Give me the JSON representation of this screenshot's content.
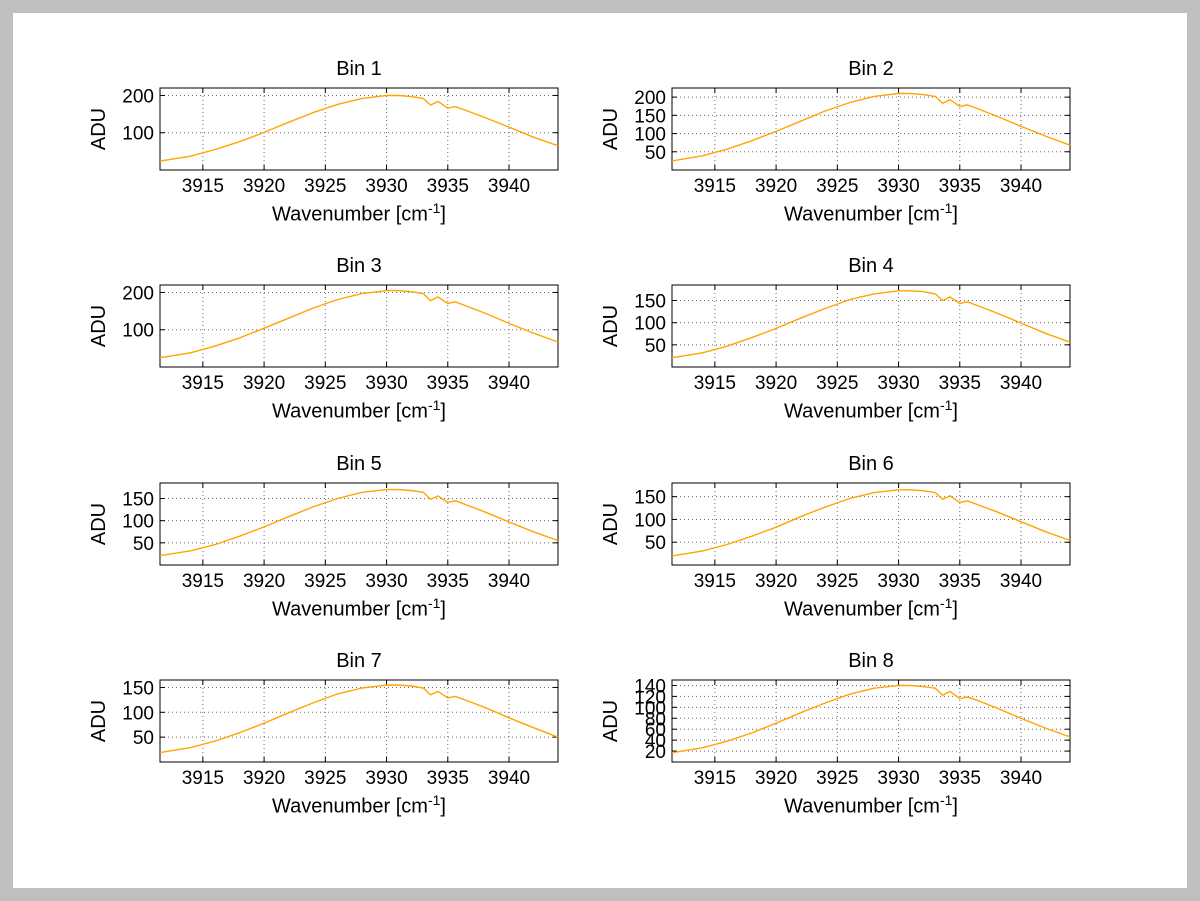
{
  "colors": {
    "window_border": "#bfbfbf",
    "figure_background": "#ffffff",
    "curve": "#ffa500",
    "grid": "#6b6b6b",
    "axis": "#000000"
  },
  "chart_data": [
    {
      "type": "line",
      "title": "Bin 1",
      "xlabel_base": "Wavenumber [cm",
      "xlabel_exp": "-1",
      "xlabel_close": "]",
      "ylabel": "ADU",
      "xlim": [
        3911.5,
        3944
      ],
      "ylim": [
        0,
        220
      ],
      "xticks": [
        3915,
        3920,
        3925,
        3930,
        3935,
        3940
      ],
      "yticks": [
        100,
        200
      ],
      "grid": true,
      "legend": "none",
      "line_color": "#ffa500",
      "x": [
        3911.5,
        3914,
        3916,
        3918,
        3920,
        3922,
        3924,
        3926,
        3928,
        3930,
        3931,
        3932,
        3933,
        3933.6,
        3934.2,
        3935,
        3935.6,
        3936.4,
        3938,
        3940,
        3942,
        3944
      ],
      "y": [
        24,
        37,
        55,
        76,
        101,
        128,
        154,
        176,
        192,
        200,
        200,
        197,
        192,
        174,
        184,
        166,
        170,
        161,
        141,
        115,
        88,
        65
      ]
    },
    {
      "type": "line",
      "title": "Bin 2",
      "xlabel_base": "Wavenumber [cm",
      "xlabel_exp": "-1",
      "xlabel_close": "]",
      "ylabel": "ADU",
      "xlim": [
        3911.5,
        3944
      ],
      "ylim": [
        0,
        225
      ],
      "xticks": [
        3915,
        3920,
        3925,
        3930,
        3935,
        3940
      ],
      "yticks": [
        50,
        100,
        150,
        200
      ],
      "grid": true,
      "legend": "none",
      "line_color": "#ffa500",
      "x": [
        3911.5,
        3914,
        3916,
        3918,
        3920,
        3922,
        3924,
        3926,
        3928,
        3930,
        3931,
        3932,
        3933,
        3933.6,
        3934.2,
        3935,
        3935.6,
        3936.4,
        3938,
        3940,
        3942,
        3944
      ],
      "y": [
        25,
        39,
        57,
        80,
        106,
        134,
        162,
        185,
        202,
        210,
        210,
        207,
        202,
        183,
        193,
        174,
        179,
        169,
        148,
        120,
        93,
        68
      ]
    },
    {
      "type": "line",
      "title": "Bin 3",
      "xlabel_base": "Wavenumber [cm",
      "xlabel_exp": "-1",
      "xlabel_close": "]",
      "ylabel": "ADU",
      "xlim": [
        3911.5,
        3944
      ],
      "ylim": [
        0,
        220
      ],
      "xticks": [
        3915,
        3920,
        3925,
        3930,
        3935,
        3940
      ],
      "yticks": [
        100,
        200
      ],
      "grid": true,
      "legend": "none",
      "line_color": "#ffa500",
      "x": [
        3911.5,
        3914,
        3916,
        3918,
        3920,
        3922,
        3924,
        3926,
        3928,
        3930,
        3931,
        3932,
        3933,
        3933.6,
        3934.2,
        3935,
        3935.6,
        3936.4,
        3938,
        3940,
        3942,
        3944
      ],
      "y": [
        25,
        38,
        56,
        78,
        104,
        131,
        158,
        181,
        197,
        205,
        205,
        202,
        197,
        178,
        188,
        170,
        175,
        165,
        145,
        117,
        91,
        67
      ]
    },
    {
      "type": "line",
      "title": "Bin 4",
      "xlabel_base": "Wavenumber [cm",
      "xlabel_exp": "-1",
      "xlabel_close": "]",
      "ylabel": "ADU",
      "xlim": [
        3911.5,
        3944
      ],
      "ylim": [
        0,
        185
      ],
      "xticks": [
        3915,
        3920,
        3925,
        3930,
        3935,
        3940
      ],
      "yticks": [
        50,
        100,
        150
      ],
      "grid": true,
      "legend": "none",
      "line_color": "#ffa500",
      "x": [
        3911.5,
        3914,
        3916,
        3918,
        3920,
        3922,
        3924,
        3926,
        3928,
        3930,
        3931,
        3932,
        3933,
        3933.6,
        3934.2,
        3935,
        3935.6,
        3936.4,
        3938,
        3940,
        3942,
        3944
      ],
      "y": [
        21,
        32,
        47,
        66,
        87,
        110,
        132,
        152,
        165,
        172,
        172,
        170,
        165,
        150,
        158,
        143,
        147,
        139,
        122,
        99,
        76,
        56
      ]
    },
    {
      "type": "line",
      "title": "Bin 5",
      "xlabel_base": "Wavenumber [cm",
      "xlabel_exp": "-1",
      "xlabel_close": "]",
      "ylabel": "ADU",
      "xlim": [
        3911.5,
        3944
      ],
      "ylim": [
        0,
        185
      ],
      "xticks": [
        3915,
        3920,
        3925,
        3930,
        3935,
        3940
      ],
      "yticks": [
        50,
        100,
        150
      ],
      "grid": true,
      "legend": "none",
      "line_color": "#ffa500",
      "x": [
        3911.5,
        3914,
        3916,
        3918,
        3920,
        3922,
        3924,
        3926,
        3928,
        3930,
        3931,
        3932,
        3933,
        3933.6,
        3934.2,
        3935,
        3935.6,
        3936.4,
        3938,
        3940,
        3942,
        3944
      ],
      "y": [
        21,
        32,
        46,
        65,
        86,
        109,
        131,
        150,
        164,
        170,
        170,
        168,
        164,
        148,
        156,
        141,
        145,
        137,
        120,
        97,
        75,
        55
      ]
    },
    {
      "type": "line",
      "title": "Bin 6",
      "xlabel_base": "Wavenumber [cm",
      "xlabel_exp": "-1",
      "xlabel_close": "]",
      "ylabel": "ADU",
      "xlim": [
        3911.5,
        3944
      ],
      "ylim": [
        0,
        180
      ],
      "xticks": [
        3915,
        3920,
        3925,
        3930,
        3935,
        3940
      ],
      "yticks": [
        50,
        100,
        150
      ],
      "grid": true,
      "legend": "none",
      "line_color": "#ffa500",
      "x": [
        3911.5,
        3914,
        3916,
        3918,
        3920,
        3922,
        3924,
        3926,
        3928,
        3930,
        3931,
        3932,
        3933,
        3933.6,
        3934.2,
        3935,
        3935.6,
        3936.4,
        3938,
        3940,
        3942,
        3944
      ],
      "y": [
        20,
        31,
        45,
        63,
        83,
        106,
        127,
        146,
        159,
        165,
        165,
        163,
        159,
        144,
        152,
        137,
        141,
        133,
        117,
        95,
        73,
        54
      ]
    },
    {
      "type": "line",
      "title": "Bin 7",
      "xlabel_base": "Wavenumber [cm",
      "xlabel_exp": "-1",
      "xlabel_close": "]",
      "ylabel": "ADU",
      "xlim": [
        3911.5,
        3944
      ],
      "ylim": [
        0,
        165
      ],
      "xticks": [
        3915,
        3920,
        3925,
        3930,
        3935,
        3940
      ],
      "yticks": [
        50,
        100,
        150
      ],
      "grid": true,
      "legend": "none",
      "line_color": "#ffa500",
      "x": [
        3911.5,
        3914,
        3916,
        3918,
        3920,
        3922,
        3924,
        3926,
        3928,
        3930,
        3931,
        3932,
        3933,
        3933.6,
        3934.2,
        3935,
        3935.6,
        3936.4,
        3938,
        3940,
        3942,
        3944
      ],
      "y": [
        19,
        29,
        42,
        59,
        78,
        99,
        119,
        137,
        149,
        155,
        155,
        153,
        149,
        135,
        142,
        129,
        132,
        125,
        110,
        89,
        69,
        50
      ]
    },
    {
      "type": "line",
      "title": "Bin 8",
      "xlabel_base": "Wavenumber [cm",
      "xlabel_exp": "-1",
      "xlabel_close": "]",
      "ylabel": "ADU",
      "xlim": [
        3911.5,
        3944
      ],
      "ylim": [
        0,
        150
      ],
      "xticks": [
        3915,
        3920,
        3925,
        3930,
        3935,
        3940
      ],
      "yticks": [
        20,
        40,
        60,
        80,
        100,
        120,
        140
      ],
      "grid": true,
      "legend": "none",
      "line_color": "#ffa500",
      "x": [
        3911.5,
        3914,
        3916,
        3918,
        3920,
        3922,
        3924,
        3926,
        3928,
        3930,
        3931,
        3932,
        3933,
        3933.6,
        3934.2,
        3935,
        3935.6,
        3936.4,
        3938,
        3940,
        3942,
        3944
      ],
      "y": [
        17,
        26,
        38,
        53,
        71,
        90,
        108,
        124,
        135,
        140,
        140,
        138,
        135,
        122,
        129,
        116,
        119,
        113,
        99,
        80,
        62,
        46
      ]
    }
  ]
}
